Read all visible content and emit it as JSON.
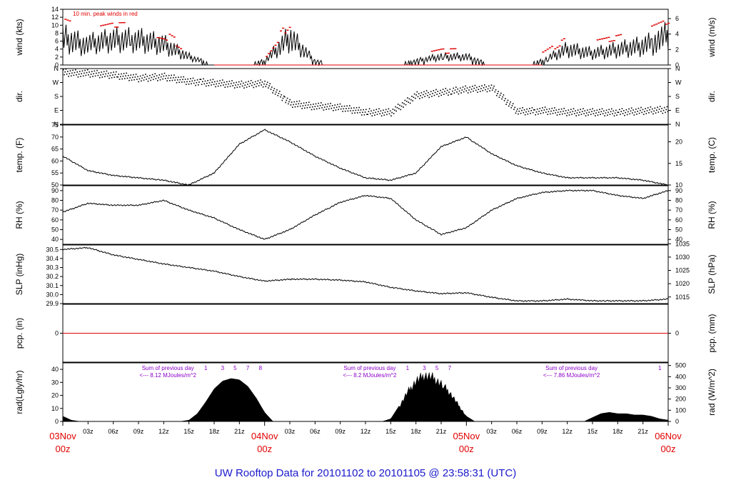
{
  "title": "UW Rooftop Data for 20101102  to  20101105 @ 23:58:31  (UTC)",
  "colors": {
    "title": "#1a1acc",
    "dates": "#e00000",
    "peak": "#e00000",
    "annotation": "#8a00c8",
    "trace": "#000000"
  },
  "chart_data": [
    {
      "type": "line",
      "ylabel": "wind (kts)",
      "ylabel_right": "wind (m/s)",
      "ylim": [
        0,
        14
      ],
      "left_ticks": [
        "0",
        "2",
        "4",
        "6",
        "8",
        "10",
        "12",
        "14"
      ],
      "right_ticks": [
        "0",
        "2",
        "4",
        "6"
      ],
      "right_tick_values": [
        0,
        2,
        4,
        6
      ],
      "right_scale": 0.5144,
      "annotation": "10 min. peak winds in red",
      "series": [
        {
          "x": [
            0,
            3,
            6,
            9,
            12,
            15,
            18,
            21,
            24,
            27,
            30,
            33,
            36,
            39,
            42,
            45,
            48,
            51,
            54,
            57,
            60,
            63,
            66,
            69,
            72
          ],
          "y": [
            7,
            5,
            6,
            6,
            5,
            2,
            0,
            0,
            1,
            7,
            1,
            0,
            0,
            0,
            1,
            2,
            2,
            0,
            0,
            1,
            4,
            3,
            4,
            5,
            7
          ]
        }
      ]
    },
    {
      "type": "scatter",
      "ylabel": "dir.",
      "ylim": [
        0,
        360
      ],
      "left_ticks": [
        "N",
        "E",
        "S",
        "W",
        "N"
      ],
      "right_ticks": [
        "N",
        "E",
        "S",
        "W",
        "N"
      ],
      "series": [
        {
          "x": [
            0,
            3,
            6,
            9,
            12,
            15,
            18,
            21,
            24,
            27,
            30,
            33,
            36,
            39,
            42,
            45,
            48,
            51,
            54,
            57,
            60,
            63,
            66,
            69,
            72
          ],
          "y": [
            340,
            330,
            320,
            300,
            310,
            280,
            270,
            260,
            270,
            140,
            120,
            110,
            80,
            80,
            190,
            210,
            230,
            240,
            90,
            90,
            80,
            80,
            80,
            90,
            100
          ]
        }
      ]
    },
    {
      "type": "line",
      "ylabel": "temp. (F)",
      "ylabel_right": "temp. (C)",
      "ylim": [
        50,
        75
      ],
      "left_ticks": [
        "50",
        "55",
        "60",
        "65",
        "70",
        "75"
      ],
      "right_ticks": [
        "10",
        "15",
        "20"
      ],
      "right_tick_values": [
        10,
        15,
        20
      ],
      "series": [
        {
          "x": [
            0,
            3,
            6,
            9,
            12,
            15,
            18,
            21,
            24,
            27,
            30,
            33,
            36,
            39,
            42,
            45,
            48,
            51,
            54,
            57,
            60,
            63,
            66,
            69,
            72
          ],
          "y": [
            62,
            56,
            54,
            53,
            52,
            50,
            55,
            67,
            73,
            68,
            62,
            57,
            53,
            52,
            55,
            66,
            70,
            63,
            58,
            55,
            53,
            53,
            53,
            52,
            50
          ]
        }
      ]
    },
    {
      "type": "line",
      "ylabel": "RH (%)",
      "ylabel_right": "RH (%)",
      "ylim": [
        35,
        95
      ],
      "left_ticks": [
        "40",
        "50",
        "60",
        "70",
        "80",
        "90"
      ],
      "right_ticks": [
        "40",
        "50",
        "60",
        "70",
        "80",
        "90"
      ],
      "right_tick_values": [
        40,
        50,
        60,
        70,
        80,
        90
      ],
      "series": [
        {
          "x": [
            0,
            3,
            6,
            9,
            12,
            15,
            18,
            21,
            24,
            27,
            30,
            33,
            36,
            39,
            42,
            45,
            48,
            51,
            54,
            57,
            60,
            63,
            66,
            69,
            72
          ],
          "y": [
            68,
            77,
            75,
            75,
            80,
            70,
            62,
            50,
            40,
            50,
            65,
            78,
            85,
            82,
            60,
            45,
            52,
            70,
            82,
            88,
            90,
            90,
            85,
            82,
            90
          ]
        }
      ]
    },
    {
      "type": "line",
      "ylabel": "SLP (inHg)",
      "ylabel_right": "SLP (hPa)",
      "ylim": [
        29.9,
        30.55
      ],
      "left_ticks": [
        "29.9",
        "30.0",
        "30.1",
        "30.2",
        "30.3",
        "30.4",
        "30.5"
      ],
      "right_ticks": [
        "1015",
        "1020",
        "1025",
        "1030",
        "1035"
      ],
      "right_tick_values": [
        1015,
        1020,
        1025,
        1030,
        1035
      ],
      "series": [
        {
          "x": [
            0,
            3,
            6,
            9,
            12,
            15,
            18,
            21,
            24,
            27,
            30,
            33,
            36,
            39,
            42,
            45,
            48,
            51,
            54,
            57,
            60,
            63,
            66,
            69,
            72
          ],
          "y": [
            30.5,
            30.52,
            30.44,
            30.39,
            30.34,
            30.3,
            30.26,
            30.2,
            30.15,
            30.17,
            30.17,
            30.16,
            30.14,
            30.08,
            30.04,
            30.01,
            30.02,
            29.97,
            29.93,
            29.93,
            29.95,
            29.93,
            29.93,
            29.93,
            29.95
          ]
        }
      ]
    },
    {
      "type": "line",
      "ylabel": "pcp. (in)",
      "ylabel_right": "pcp. (mm)",
      "ylim": [
        -1,
        1
      ],
      "left_ticks": [
        "0"
      ],
      "right_ticks": [
        "0"
      ],
      "right_tick_values": [
        0
      ],
      "series": [
        {
          "x": [
            0,
            72
          ],
          "y": [
            0,
            0
          ]
        }
      ]
    },
    {
      "type": "area",
      "ylabel": "rad(Lgly/hr)",
      "ylabel_right": "rad (W/m^2)",
      "ylim": [
        0,
        45
      ],
      "left_ticks": [
        "0",
        "10",
        "20",
        "30",
        "40"
      ],
      "right_ticks": [
        "0",
        "100",
        "200",
        "300",
        "400",
        "500"
      ],
      "right_tick_values": [
        0,
        100,
        200,
        300,
        400,
        500
      ],
      "right_scale": 11.63,
      "series": [
        {
          "x": [
            0,
            1,
            2,
            14,
            15,
            16,
            17,
            18,
            19,
            20,
            21,
            22,
            23,
            24,
            25,
            38,
            39,
            40,
            41,
            42,
            43,
            44,
            45,
            46,
            47,
            48,
            49,
            62,
            63,
            64,
            65,
            66,
            67,
            68,
            69,
            70,
            71,
            72
          ],
          "y": [
            4,
            1,
            0,
            0,
            1,
            6,
            15,
            25,
            31,
            33,
            32,
            27,
            18,
            7,
            0,
            0,
            2,
            12,
            24,
            33,
            38,
            36,
            31,
            24,
            14,
            4,
            0,
            0,
            3,
            6,
            7,
            6,
            6,
            5,
            5,
            4,
            2,
            1
          ]
        }
      ],
      "notes": [
        {
          "lines": [
            "Sum of previous day",
            "<--- 8.12 MJoules/m^2"
          ],
          "x": 12.5
        },
        {
          "lines": [
            "Sum of previous day",
            "<--- 8.2 MJoules/m^2"
          ],
          "x": 36.5
        },
        {
          "lines": [
            "Sum of previous day",
            "<--- 7.86 MJoules/m^2"
          ],
          "x": 60.5
        }
      ],
      "day_markers": [
        {
          "labels": [
            "1",
            "3",
            "5",
            "7",
            "8"
          ],
          "x": [
            17,
            19,
            20.5,
            22,
            23.5
          ]
        },
        {
          "labels": [
            "1",
            "3",
            "5",
            "7"
          ],
          "x": [
            41,
            43,
            44.5,
            46
          ]
        },
        {
          "labels": [
            "1"
          ],
          "x": [
            71
          ]
        }
      ]
    }
  ],
  "x_axis": {
    "major": [
      {
        "x": 0,
        "date": "03Nov",
        "hour": "00z"
      },
      {
        "x": 24,
        "date": "04Nov",
        "hour": "00z"
      },
      {
        "x": 48,
        "date": "05Nov",
        "hour": "00z"
      },
      {
        "x": 72,
        "date": "06Nov",
        "hour": "00z"
      }
    ],
    "minor": [
      "03z",
      "06z",
      "09z",
      "12z",
      "15z",
      "18z",
      "21z"
    ]
  }
}
